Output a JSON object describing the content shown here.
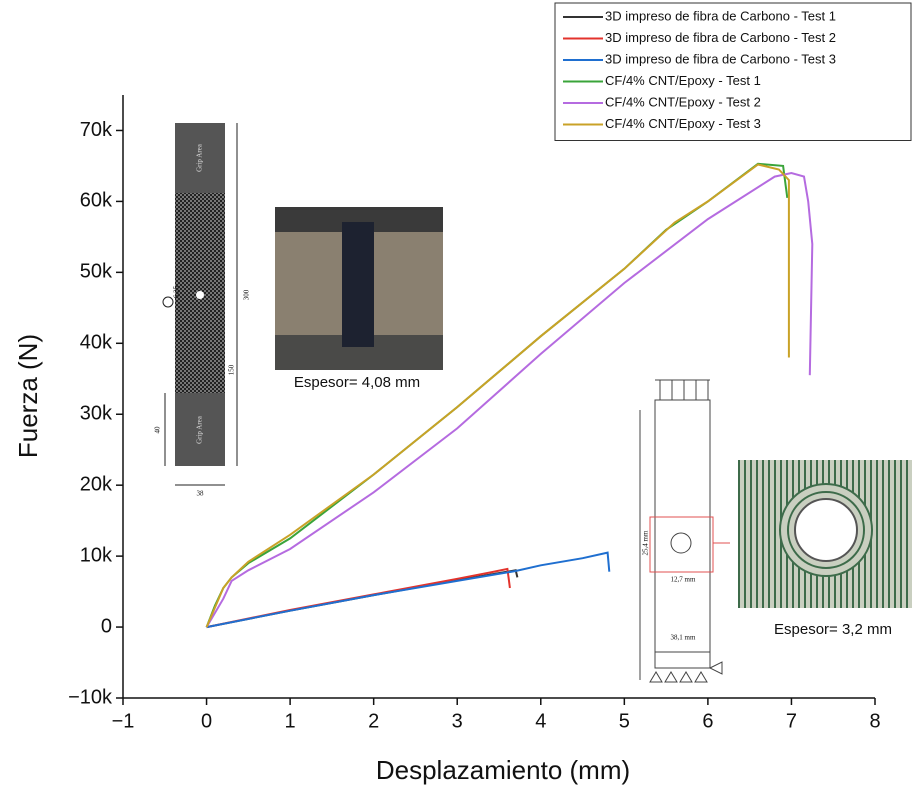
{
  "chart_data": {
    "type": "line",
    "xlabel": "Desplazamiento (mm)",
    "ylabel": "Fuerza (N)",
    "xlim": [
      -1,
      8
    ],
    "ylim": [
      -10000,
      75000
    ],
    "xticks": [
      {
        "value": -1,
        "label": "−1"
      },
      0,
      1,
      2,
      3,
      4,
      5,
      6,
      7,
      8
    ],
    "yticks": [
      {
        "value": -10000,
        "label": "−10k"
      },
      0,
      {
        "value": 10000,
        "label": "10k"
      },
      {
        "value": 20000,
        "label": "20k"
      },
      {
        "value": 30000,
        "label": "30k"
      },
      {
        "value": 40000,
        "label": "40k"
      },
      {
        "value": 50000,
        "label": "50k"
      },
      {
        "value": 60000,
        "label": "60k"
      },
      {
        "value": 70000,
        "label": "70k"
      }
    ],
    "legend": "upper right",
    "series": [
      {
        "name": "3D impreso de fibra de Carbono - Test 1",
        "color": "#333333",
        "x": [
          0,
          1,
          2,
          3,
          3.5,
          3.7,
          3.72
        ],
        "values": [
          0,
          2300,
          4500,
          6600,
          7600,
          8000,
          7000
        ]
      },
      {
        "name": "3D impreso de fibra de Carbono - Test 2",
        "color": "#e3332c",
        "x": [
          0,
          1,
          2,
          3,
          3.4,
          3.6,
          3.62,
          3.63
        ],
        "values": [
          0,
          2400,
          4600,
          6800,
          7700,
          8200,
          6500,
          5500
        ]
      },
      {
        "name": "3D impreso de fibra de Carbono - Test 3",
        "color": "#1f6fd0",
        "x": [
          0,
          1,
          2,
          3,
          3.7,
          4,
          4.5,
          4.8,
          4.82
        ],
        "values": [
          0,
          2300,
          4500,
          6500,
          7900,
          8700,
          9700,
          10500,
          7800
        ]
      },
      {
        "name": "CF/4% CNT/Epoxy - Test 1",
        "color": "#3aa43a",
        "x": [
          0,
          0.1,
          0.2,
          0.3,
          0.5,
          1,
          2,
          3,
          4,
          5,
          5.5,
          6,
          6.6,
          6.9,
          6.95
        ],
        "values": [
          0,
          3000,
          5500,
          7000,
          9000,
          12500,
          21500,
          31000,
          41000,
          50500,
          56000,
          60000,
          65300,
          65000,
          60500
        ]
      },
      {
        "name": "CF/4% CNT/Epoxy - Test 2",
        "color": "#b56be0",
        "x": [
          0,
          0.2,
          0.3,
          0.5,
          1,
          2,
          3,
          4,
          5,
          6,
          6.8,
          7,
          7.15,
          7.2,
          7.25,
          7.22
        ],
        "values": [
          0,
          4000,
          6500,
          8000,
          11000,
          19000,
          28000,
          38500,
          48500,
          57500,
          63500,
          64000,
          63500,
          60000,
          54000,
          35500
        ]
      },
      {
        "name": "CF/4% CNT/Epoxy - Test 3",
        "color": "#c9a227",
        "x": [
          0,
          0.2,
          0.3,
          0.5,
          1,
          2,
          3,
          4,
          5,
          5.6,
          6,
          6.6,
          6.85,
          6.97,
          6.97
        ],
        "values": [
          0,
          5500,
          7000,
          9200,
          13000,
          21500,
          31000,
          41000,
          50500,
          57000,
          60000,
          65200,
          64500,
          63000,
          38000
        ]
      }
    ],
    "annotations": [
      "Espesor= 4,08 mm",
      "Espesor= 3,2 mm"
    ],
    "inset_labels": [
      "Grip Area",
      "Grip Area",
      "300",
      "150",
      "40",
      "38",
      "6,25",
      "25,4 mm",
      "12,7 mm",
      "38,1 mm"
    ]
  }
}
